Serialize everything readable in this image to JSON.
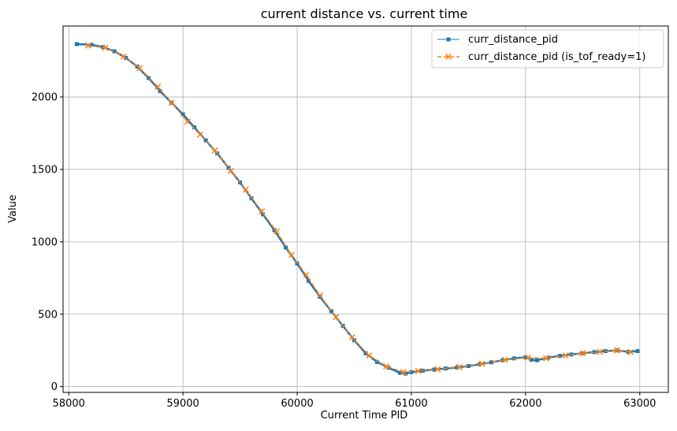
{
  "chart_data": {
    "type": "line",
    "title": "current distance vs. current time",
    "xlabel": "Current Time PID",
    "ylabel": "Value",
    "xlim": [
      57950,
      63250
    ],
    "ylim": [
      -40,
      2490
    ],
    "x_ticks": [
      58000,
      59000,
      60000,
      61000,
      62000,
      63000
    ],
    "y_ticks": [
      0,
      500,
      1000,
      1500,
      2000
    ],
    "grid": true,
    "legend_position": "top-right",
    "series": [
      {
        "name": "curr_distance_pid",
        "color": "#1f77b4",
        "marker": "square",
        "linestyle": "solid",
        "points": [
          [
            58070,
            2365
          ],
          [
            58200,
            2360
          ],
          [
            58300,
            2345
          ],
          [
            58400,
            2315
          ],
          [
            58500,
            2270
          ],
          [
            58600,
            2210
          ],
          [
            58700,
            2130
          ],
          [
            58800,
            2040
          ],
          [
            58900,
            1960
          ],
          [
            59000,
            1880
          ],
          [
            59100,
            1790
          ],
          [
            59200,
            1700
          ],
          [
            59300,
            1610
          ],
          [
            59400,
            1510
          ],
          [
            59500,
            1410
          ],
          [
            59600,
            1300
          ],
          [
            59700,
            1190
          ],
          [
            59800,
            1080
          ],
          [
            59900,
            960
          ],
          [
            60000,
            850
          ],
          [
            60100,
            730
          ],
          [
            60200,
            620
          ],
          [
            60300,
            520
          ],
          [
            60400,
            420
          ],
          [
            60500,
            320
          ],
          [
            60600,
            230
          ],
          [
            60700,
            170
          ],
          [
            60800,
            130
          ],
          [
            60900,
            95
          ],
          [
            60950,
            90
          ],
          [
            61000,
            100
          ],
          [
            61100,
            110
          ],
          [
            61200,
            118
          ],
          [
            61300,
            125
          ],
          [
            61400,
            132
          ],
          [
            61500,
            142
          ],
          [
            61600,
            155
          ],
          [
            61700,
            168
          ],
          [
            61800,
            182
          ],
          [
            61900,
            195
          ],
          [
            62000,
            202
          ],
          [
            62050,
            185
          ],
          [
            62100,
            182
          ],
          [
            62200,
            200
          ],
          [
            62300,
            212
          ],
          [
            62400,
            222
          ],
          [
            62500,
            230
          ],
          [
            62600,
            238
          ],
          [
            62700,
            245
          ],
          [
            62800,
            250
          ],
          [
            62900,
            240
          ],
          [
            62980,
            245
          ]
        ]
      },
      {
        "name": "curr_distance_pid (is_tof_ready=1)",
        "color": "#ff7f0e",
        "marker": "x",
        "linestyle": "dashed",
        "points": [
          [
            58170,
            2355
          ],
          [
            58320,
            2340
          ],
          [
            58480,
            2280
          ],
          [
            58620,
            2200
          ],
          [
            58780,
            2070
          ],
          [
            58900,
            1960
          ],
          [
            59040,
            1830
          ],
          [
            59150,
            1740
          ],
          [
            59280,
            1630
          ],
          [
            59420,
            1490
          ],
          [
            59550,
            1360
          ],
          [
            59690,
            1210
          ],
          [
            59820,
            1070
          ],
          [
            59950,
            910
          ],
          [
            60080,
            770
          ],
          [
            60200,
            630
          ],
          [
            60340,
            480
          ],
          [
            60480,
            340
          ],
          [
            60630,
            215
          ],
          [
            60780,
            140
          ],
          [
            60930,
            100
          ],
          [
            61060,
            108
          ],
          [
            61230,
            120
          ],
          [
            61420,
            135
          ],
          [
            61620,
            158
          ],
          [
            61820,
            185
          ],
          [
            62020,
            200
          ],
          [
            62180,
            195
          ],
          [
            62350,
            215
          ],
          [
            62500,
            230
          ],
          [
            62650,
            240
          ],
          [
            62800,
            250
          ],
          [
            62920,
            238
          ]
        ]
      }
    ]
  }
}
